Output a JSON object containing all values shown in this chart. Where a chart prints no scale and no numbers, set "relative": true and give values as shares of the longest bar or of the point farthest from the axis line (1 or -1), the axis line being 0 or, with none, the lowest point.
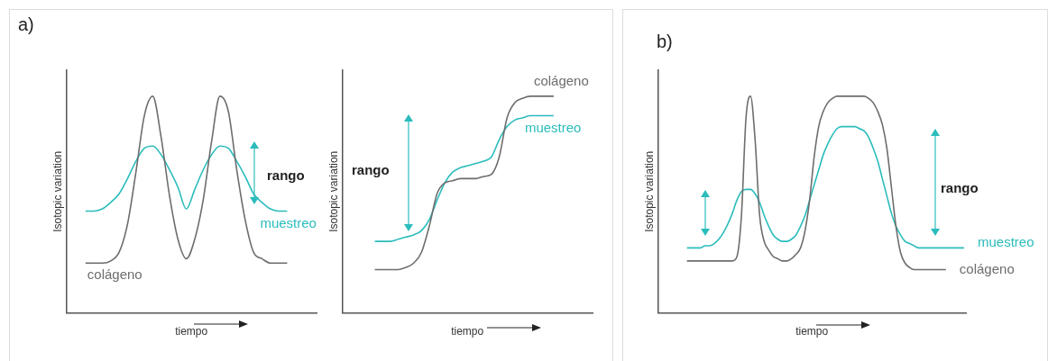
{
  "chart_data": [
    {
      "type": "line",
      "title": "a)",
      "xlabel": "tiempo",
      "ylabel": "Isotopic variation",
      "relative": true,
      "annotations": [
        "rango"
      ],
      "categories": [
        null,
        null,
        null,
        null,
        null,
        null,
        null,
        null,
        null,
        null,
        null,
        null,
        null,
        null,
        null,
        null,
        null,
        null,
        null,
        null,
        null,
        null,
        null,
        null,
        null
      ],
      "series": [
        {
          "name": "colágeno",
          "color": "#6d6d6d",
          "values": [
            0.23,
            0.23,
            0.23,
            0.24,
            0.28,
            0.41,
            0.65,
            0.91,
            1.0,
            0.81,
            0.54,
            0.34,
            0.25,
            0.34,
            0.52,
            0.79,
            1.0,
            0.93,
            0.66,
            0.43,
            0.28,
            0.25,
            0.23,
            0.23,
            0.23
          ]
        },
        {
          "name": "muestreo",
          "color": "#2bbcbc",
          "values": [
            0.47,
            0.47,
            0.48,
            0.51,
            0.55,
            0.62,
            0.7,
            0.76,
            0.77,
            0.73,
            0.66,
            0.58,
            0.48,
            0.57,
            0.66,
            0.73,
            0.77,
            0.76,
            0.7,
            0.63,
            0.55,
            0.51,
            0.48,
            0.47,
            0.47
          ]
        }
      ]
    },
    {
      "type": "line",
      "xlabel": "tiempo",
      "ylabel": "Isotopic variation",
      "relative": true,
      "annotations": [
        "rango"
      ],
      "categories": [
        null,
        null,
        null,
        null,
        null,
        null,
        null,
        null,
        null,
        null,
        null,
        null,
        null,
        null,
        null,
        null,
        null,
        null,
        null,
        null,
        null,
        null,
        null,
        null
      ],
      "series": [
        {
          "name": "colágeno",
          "color": "#6d6d6d",
          "values": [
            0.2,
            0.2,
            0.2,
            0.2,
            0.21,
            0.23,
            0.28,
            0.4,
            0.55,
            0.6,
            0.61,
            0.62,
            0.62,
            0.62,
            0.63,
            0.64,
            0.72,
            0.9,
            0.97,
            0.99,
            1.0,
            1.0,
            1.0,
            1.0
          ]
        },
        {
          "name": "muestreo",
          "color": "#2bbcbc",
          "values": [
            0.33,
            0.33,
            0.33,
            0.34,
            0.35,
            0.36,
            0.38,
            0.43,
            0.52,
            0.6,
            0.65,
            0.67,
            0.68,
            0.69,
            0.7,
            0.72,
            0.8,
            0.86,
            0.89,
            0.9,
            0.91,
            0.91,
            0.91,
            0.91
          ]
        }
      ]
    },
    {
      "type": "line",
      "title": "b)",
      "xlabel": "tiempo",
      "ylabel": "Isotopic variation",
      "relative": true,
      "annotations": [
        "rango"
      ],
      "categories": [
        null,
        null,
        null,
        null,
        null,
        null,
        null,
        null,
        null,
        null,
        null,
        null,
        null,
        null,
        null,
        null,
        null,
        null,
        null,
        null,
        null,
        null,
        null,
        null,
        null,
        null,
        null,
        null,
        null,
        null,
        null,
        null,
        null,
        null,
        null,
        null,
        null,
        null,
        null,
        null,
        null,
        null,
        null,
        null,
        null,
        null,
        null,
        null,
        null,
        null,
        null,
        null,
        null,
        null,
        null,
        null,
        null,
        null,
        null,
        null,
        null,
        null
      ],
      "series": [
        {
          "name": "colágeno",
          "color": "#6d6d6d",
          "values": [
            0.24,
            0.24,
            0.24,
            0.24,
            0.24,
            0.24,
            0.24,
            0.24,
            0.24,
            0.24,
            0.24,
            0.26,
            0.45,
            0.9,
            1.0,
            0.8,
            0.45,
            0.33,
            0.29,
            0.26,
            0.25,
            0.24,
            0.24,
            0.25,
            0.27,
            0.3,
            0.38,
            0.52,
            0.72,
            0.86,
            0.93,
            0.97,
            0.99,
            1.0,
            1.0,
            1.0,
            1.0,
            1.0,
            1.0,
            1.0,
            0.99,
            0.97,
            0.93,
            0.87,
            0.76,
            0.58,
            0.4,
            0.28,
            0.23,
            0.21,
            0.2,
            0.2,
            0.2,
            0.2,
            0.2,
            0.2,
            0.2,
            0.2,
            null,
            null,
            null,
            null
          ]
        },
        {
          "name": "muestreo",
          "color": "#2bbcbc",
          "values": [
            0.3,
            0.3,
            0.3,
            0.3,
            0.31,
            0.31,
            0.32,
            0.34,
            0.37,
            0.41,
            0.46,
            0.52,
            0.56,
            0.57,
            0.57,
            0.55,
            0.51,
            0.45,
            0.4,
            0.36,
            0.34,
            0.33,
            0.33,
            0.34,
            0.36,
            0.4,
            0.45,
            0.52,
            0.59,
            0.66,
            0.73,
            0.78,
            0.82,
            0.85,
            0.86,
            0.86,
            0.86,
            0.86,
            0.85,
            0.84,
            0.81,
            0.76,
            0.7,
            0.62,
            0.54,
            0.46,
            0.4,
            0.36,
            0.33,
            0.32,
            0.31,
            0.3,
            0.3,
            0.3,
            0.3,
            0.3,
            0.3,
            0.3,
            0.3,
            0.3,
            0.3,
            0.3
          ]
        }
      ]
    }
  ]
}
